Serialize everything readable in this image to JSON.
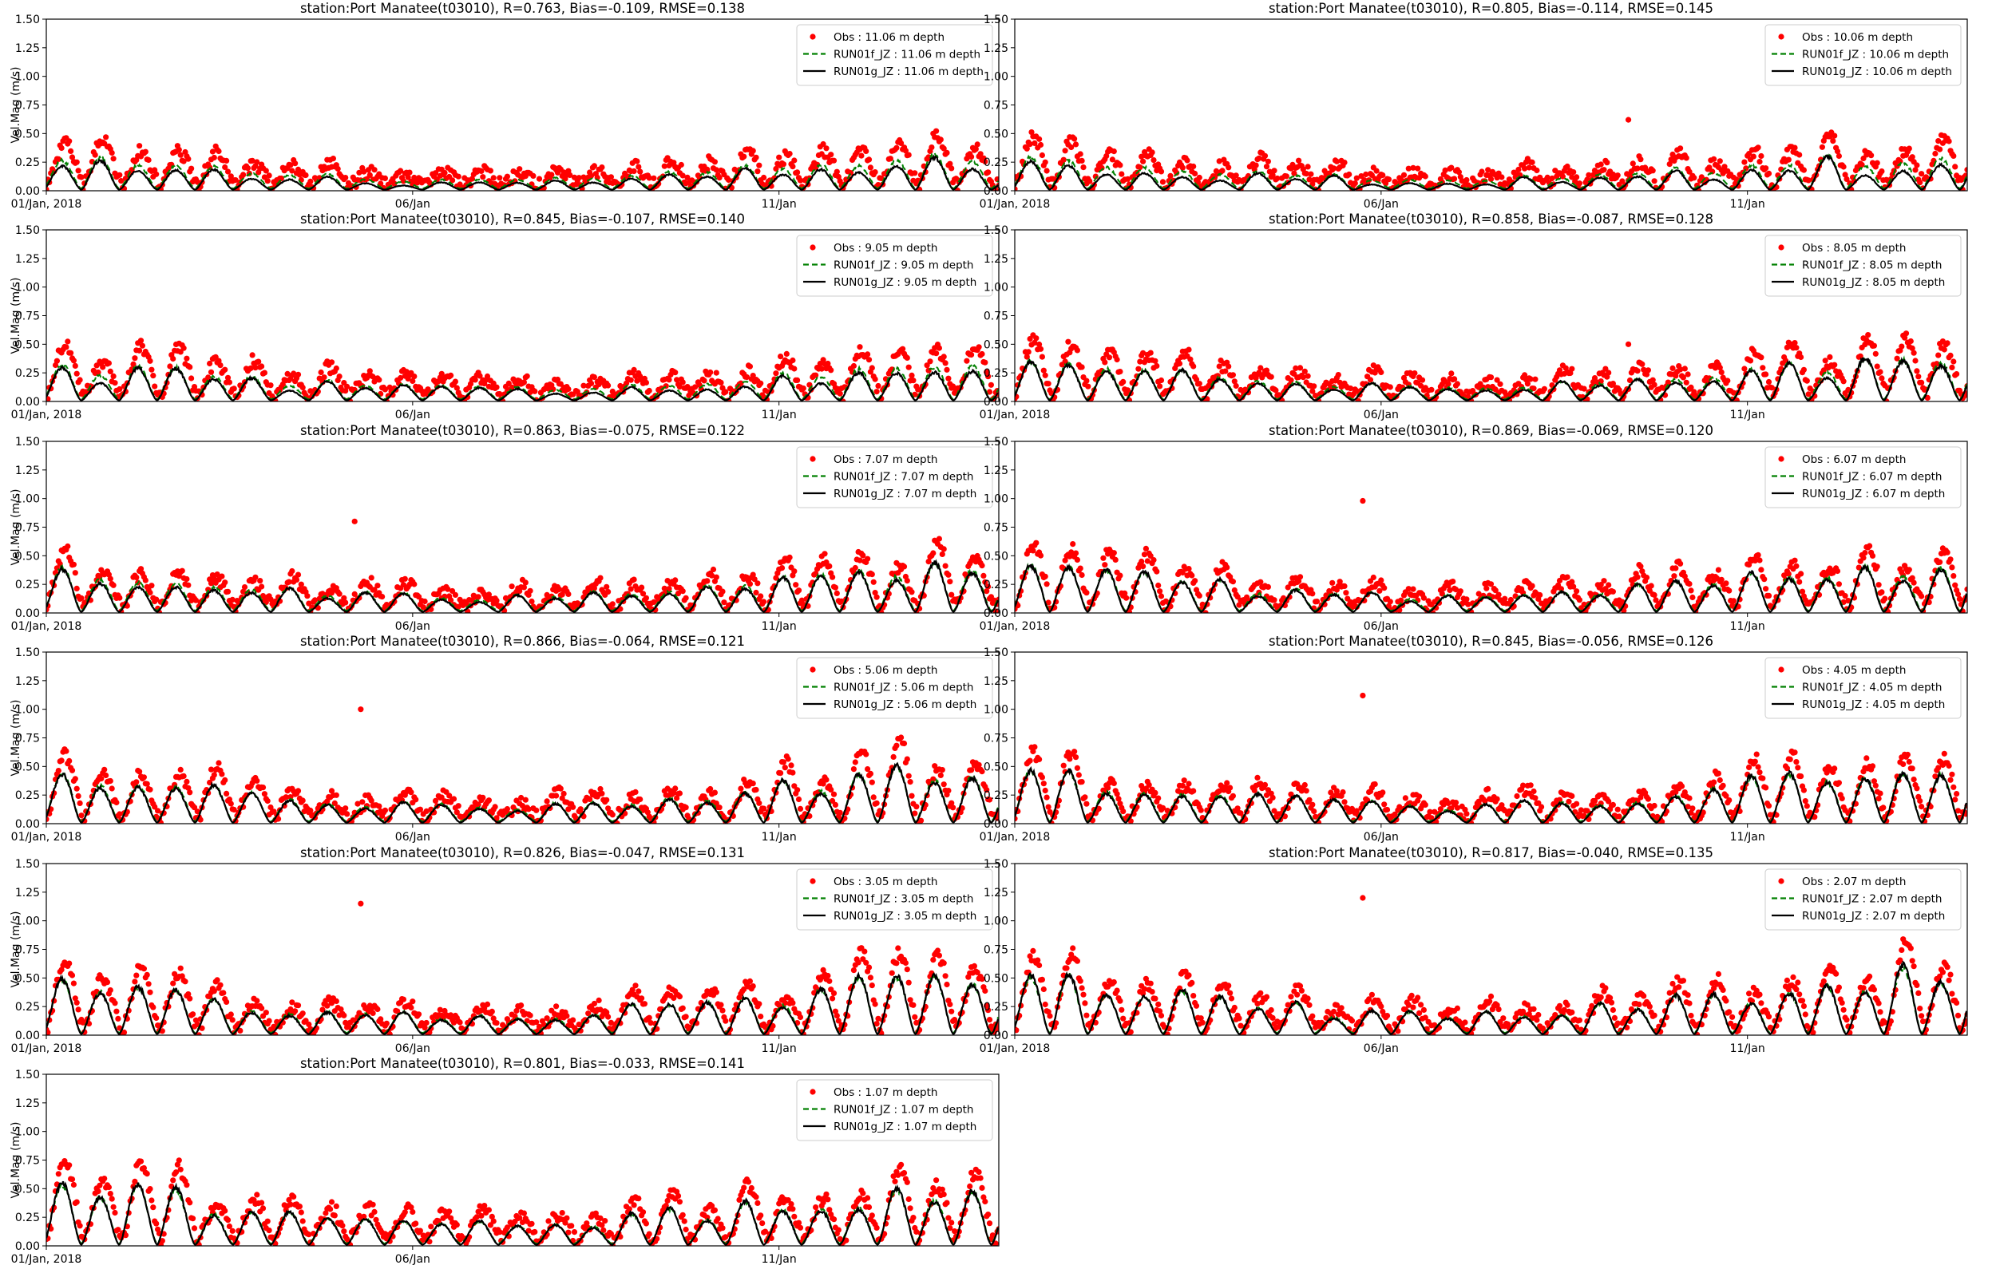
{
  "chart_data": [
    {
      "type": "line",
      "title": "station:Port Manatee(t03010), R=0.763, Bias=-0.109, RMSE=0.138",
      "ylabel": "Vel.Mag (m/s)",
      "ylim": [
        0,
        1.5
      ],
      "yticks": [
        "0.00",
        "0.25",
        "0.50",
        "0.75",
        "1.00",
        "1.25",
        "1.50"
      ],
      "xlim": [
        "2018-01-01",
        "2018-01-14"
      ],
      "xticks": [
        {
          "date": "2018-01-01",
          "label": "01/Jan, 2018"
        },
        {
          "date": "2018-01-06",
          "label": "06/Jan"
        },
        {
          "date": "2018-01-11",
          "label": "11/Jan"
        }
      ],
      "series": [
        {
          "name": "Obs : 11.06 m depth",
          "kind": "scatter",
          "color": "#ff0000",
          "amp_mean": 0.36,
          "amp_var": 0.12,
          "base": 0.05
        },
        {
          "name": "RUN01f_JZ : 11.06 m depth",
          "kind": "dashed",
          "color": "#008000",
          "amp_mean": 0.25,
          "amp_var": 0.07,
          "base": 0.02
        },
        {
          "name": "RUN01g_JZ : 11.06 m depth",
          "kind": "solid",
          "color": "#000000",
          "amp_mean": 0.2,
          "amp_var": 0.1,
          "base": 0.01
        }
      ],
      "legend": "top-right"
    },
    {
      "type": "line",
      "title": "station:Port Manatee(t03010), R=0.805, Bias=-0.114, RMSE=0.145",
      "ylabel": "",
      "ylim": [
        0,
        1.5
      ],
      "yticks": [
        "0.00",
        "0.25",
        "0.50",
        "0.75",
        "1.00",
        "1.25",
        "1.50"
      ],
      "xlim": [
        "2018-01-01",
        "2018-01-14"
      ],
      "xticks": [
        {
          "date": "2018-01-01",
          "label": "01/Jan, 2018"
        },
        {
          "date": "2018-01-06",
          "label": "06/Jan"
        },
        {
          "date": "2018-01-11",
          "label": "11/Jan"
        }
      ],
      "series": [
        {
          "name": "Obs : 10.06 m depth",
          "kind": "scatter",
          "color": "#ff0000",
          "amp_mean": 0.42,
          "amp_var": 0.13,
          "base": 0.05
        },
        {
          "name": "RUN01f_JZ : 10.06 m depth",
          "kind": "dashed",
          "color": "#008000",
          "amp_mean": 0.28,
          "amp_var": 0.07,
          "base": 0.02
        },
        {
          "name": "RUN01g_JZ : 10.06 m depth",
          "kind": "solid",
          "color": "#000000",
          "amp_mean": 0.24,
          "amp_var": 0.11,
          "base": 0.01
        }
      ],
      "outliers": [
        {
          "x": "2018-01-09 09:00",
          "y": 0.62
        }
      ],
      "legend": "top-right"
    },
    {
      "type": "line",
      "title": "station:Port Manatee(t03010), R=0.845, Bias=-0.107, RMSE=0.140",
      "ylabel": "Vel.Mag (m/s)",
      "ylim": [
        0,
        1.5
      ],
      "yticks": [
        "0.00",
        "0.25",
        "0.50",
        "0.75",
        "1.00",
        "1.25",
        "1.50"
      ],
      "xlim": [
        "2018-01-01",
        "2018-01-14"
      ],
      "xticks": [
        {
          "date": "2018-01-01",
          "label": "01/Jan, 2018"
        },
        {
          "date": "2018-01-06",
          "label": "06/Jan"
        },
        {
          "date": "2018-01-11",
          "label": "11/Jan"
        }
      ],
      "series": [
        {
          "name": "Obs : 9.05 m depth",
          "kind": "scatter",
          "color": "#ff0000",
          "amp_mean": 0.46,
          "amp_var": 0.15,
          "base": 0.05
        },
        {
          "name": "RUN01f_JZ : 9.05 m depth",
          "kind": "dashed",
          "color": "#008000",
          "amp_mean": 0.31,
          "amp_var": 0.08,
          "base": 0.02
        },
        {
          "name": "RUN01g_JZ : 9.05 m depth",
          "kind": "solid",
          "color": "#000000",
          "amp_mean": 0.28,
          "amp_var": 0.12,
          "base": 0.01
        }
      ],
      "legend": "top-right"
    },
    {
      "type": "line",
      "title": "station:Port Manatee(t03010), R=0.858, Bias=-0.087, RMSE=0.128",
      "ylabel": "",
      "ylim": [
        0,
        1.5
      ],
      "yticks": [
        "0.00",
        "0.25",
        "0.50",
        "0.75",
        "1.00",
        "1.25",
        "1.50"
      ],
      "xlim": [
        "2018-01-01",
        "2018-01-14"
      ],
      "xticks": [
        {
          "date": "2018-01-01",
          "label": "01/Jan, 2018"
        },
        {
          "date": "2018-01-06",
          "label": "06/Jan"
        },
        {
          "date": "2018-01-11",
          "label": "11/Jan"
        }
      ],
      "series": [
        {
          "name": "Obs : 8.05 m depth",
          "kind": "scatter",
          "color": "#ff0000",
          "amp_mean": 0.48,
          "amp_var": 0.16,
          "base": 0.05
        },
        {
          "name": "RUN01f_JZ : 8.05 m depth",
          "kind": "dashed",
          "color": "#008000",
          "amp_mean": 0.34,
          "amp_var": 0.08,
          "base": 0.02
        },
        {
          "name": "RUN01g_JZ : 8.05 m depth",
          "kind": "solid",
          "color": "#000000",
          "amp_mean": 0.33,
          "amp_var": 0.12,
          "base": 0.01
        }
      ],
      "outliers": [
        {
          "x": "2018-01-09 09:00",
          "y": 0.5
        }
      ],
      "legend": "top-right"
    },
    {
      "type": "line",
      "title": "station:Port Manatee(t03010), R=0.863, Bias=-0.075, RMSE=0.122",
      "ylabel": "Vel.Mag (m/s)",
      "ylim": [
        0,
        1.5
      ],
      "yticks": [
        "0.00",
        "0.25",
        "0.50",
        "0.75",
        "1.00",
        "1.25",
        "1.50"
      ],
      "xlim": [
        "2018-01-01",
        "2018-01-14"
      ],
      "xticks": [
        {
          "date": "2018-01-01",
          "label": "01/Jan, 2018"
        },
        {
          "date": "2018-01-06",
          "label": "06/Jan"
        },
        {
          "date": "2018-01-11",
          "label": "11/Jan"
        }
      ],
      "series": [
        {
          "name": "Obs : 7.07 m depth",
          "kind": "scatter",
          "color": "#ff0000",
          "amp_mean": 0.5,
          "amp_var": 0.17,
          "base": 0.05
        },
        {
          "name": "RUN01f_JZ : 7.07 m depth",
          "kind": "dashed",
          "color": "#008000",
          "amp_mean": 0.38,
          "amp_var": 0.09,
          "base": 0.02
        },
        {
          "name": "RUN01g_JZ : 7.07 m depth",
          "kind": "solid",
          "color": "#000000",
          "amp_mean": 0.37,
          "amp_var": 0.12,
          "base": 0.01
        }
      ],
      "outliers": [
        {
          "x": "2018-01-05 05:00",
          "y": 0.8
        }
      ],
      "legend": "top-right"
    },
    {
      "type": "line",
      "title": "station:Port Manatee(t03010), R=0.869, Bias=-0.069, RMSE=0.120",
      "ylabel": "",
      "ylim": [
        0,
        1.5
      ],
      "yticks": [
        "0.00",
        "0.25",
        "0.50",
        "0.75",
        "1.00",
        "1.25",
        "1.50"
      ],
      "xlim": [
        "2018-01-01",
        "2018-01-14"
      ],
      "xticks": [
        {
          "date": "2018-01-01",
          "label": "01/Jan, 2018"
        },
        {
          "date": "2018-01-06",
          "label": "06/Jan"
        },
        {
          "date": "2018-01-11",
          "label": "11/Jan"
        }
      ],
      "series": [
        {
          "name": "Obs : 6.07 m depth",
          "kind": "scatter",
          "color": "#ff0000",
          "amp_mean": 0.52,
          "amp_var": 0.18,
          "base": 0.05
        },
        {
          "name": "RUN01f_JZ : 6.07 m depth",
          "kind": "dashed",
          "color": "#008000",
          "amp_mean": 0.4,
          "amp_var": 0.1,
          "base": 0.02
        },
        {
          "name": "RUN01g_JZ : 6.07 m depth",
          "kind": "solid",
          "color": "#000000",
          "amp_mean": 0.4,
          "amp_var": 0.13,
          "base": 0.01
        }
      ],
      "outliers": [
        {
          "x": "2018-01-05 18:00",
          "y": 0.98
        }
      ],
      "legend": "top-right"
    },
    {
      "type": "line",
      "title": "station:Port Manatee(t03010), R=0.866, Bias=-0.064, RMSE=0.121",
      "ylabel": "Vel.Mag (m/s)",
      "ylim": [
        0,
        1.5
      ],
      "yticks": [
        "0.00",
        "0.25",
        "0.50",
        "0.75",
        "1.00",
        "1.25",
        "1.50"
      ],
      "xlim": [
        "2018-01-01",
        "2018-01-14"
      ],
      "xticks": [
        {
          "date": "2018-01-01",
          "label": "01/Jan, 2018"
        },
        {
          "date": "2018-01-06",
          "label": "06/Jan"
        },
        {
          "date": "2018-01-11",
          "label": "11/Jan"
        }
      ],
      "series": [
        {
          "name": "Obs : 5.06 m depth",
          "kind": "scatter",
          "color": "#ff0000",
          "amp_mean": 0.54,
          "amp_var": 0.2,
          "base": 0.05
        },
        {
          "name": "RUN01f_JZ : 5.06 m depth",
          "kind": "dashed",
          "color": "#008000",
          "amp_mean": 0.42,
          "amp_var": 0.11,
          "base": 0.02
        },
        {
          "name": "RUN01g_JZ : 5.06 m depth",
          "kind": "solid",
          "color": "#000000",
          "amp_mean": 0.42,
          "amp_var": 0.13,
          "base": 0.01
        }
      ],
      "outliers": [
        {
          "x": "2018-01-05 07:00",
          "y": 1.0
        }
      ],
      "legend": "top-right"
    },
    {
      "type": "line",
      "title": "station:Port Manatee(t03010), R=0.845, Bias=-0.056, RMSE=0.126",
      "ylabel": "",
      "ylim": [
        0,
        1.5
      ],
      "yticks": [
        "0.00",
        "0.25",
        "0.50",
        "0.75",
        "1.00",
        "1.25",
        "1.50"
      ],
      "xlim": [
        "2018-01-01",
        "2018-01-14"
      ],
      "xticks": [
        {
          "date": "2018-01-01",
          "label": "01/Jan, 2018"
        },
        {
          "date": "2018-01-06",
          "label": "06/Jan"
        },
        {
          "date": "2018-01-11",
          "label": "11/Jan"
        }
      ],
      "series": [
        {
          "name": "Obs : 4.05 m depth",
          "kind": "scatter",
          "color": "#ff0000",
          "amp_mean": 0.56,
          "amp_var": 0.2,
          "base": 0.05
        },
        {
          "name": "RUN01f_JZ : 4.05 m depth",
          "kind": "dashed",
          "color": "#008000",
          "amp_mean": 0.44,
          "amp_var": 0.12,
          "base": 0.02
        },
        {
          "name": "RUN01g_JZ : 4.05 m depth",
          "kind": "solid",
          "color": "#000000",
          "amp_mean": 0.45,
          "amp_var": 0.14,
          "base": 0.01
        }
      ],
      "outliers": [
        {
          "x": "2018-01-05 18:00",
          "y": 1.12
        }
      ],
      "legend": "top-right"
    },
    {
      "type": "line",
      "title": "station:Port Manatee(t03010), R=0.826, Bias=-0.047, RMSE=0.131",
      "ylabel": "Vel.Mag (m/s)",
      "ylim": [
        0,
        1.5
      ],
      "yticks": [
        "0.00",
        "0.25",
        "0.50",
        "0.75",
        "1.00",
        "1.25",
        "1.50"
      ],
      "xlim": [
        "2018-01-01",
        "2018-01-14"
      ],
      "xticks": [
        {
          "date": "2018-01-01",
          "label": "01/Jan, 2018"
        },
        {
          "date": "2018-01-06",
          "label": "06/Jan"
        },
        {
          "date": "2018-01-11",
          "label": "11/Jan"
        }
      ],
      "series": [
        {
          "name": "Obs : 3.05 m depth",
          "kind": "scatter",
          "color": "#ff0000",
          "amp_mean": 0.6,
          "amp_var": 0.22,
          "base": 0.05
        },
        {
          "name": "RUN01f_JZ : 3.05 m depth",
          "kind": "dashed",
          "color": "#008000",
          "amp_mean": 0.46,
          "amp_var": 0.13,
          "base": 0.02
        },
        {
          "name": "RUN01g_JZ : 3.05 m depth",
          "kind": "solid",
          "color": "#000000",
          "amp_mean": 0.47,
          "amp_var": 0.15,
          "base": 0.01
        }
      ],
      "outliers": [
        {
          "x": "2018-01-05 07:00",
          "y": 1.15
        }
      ],
      "legend": "top-right"
    },
    {
      "type": "line",
      "title": "station:Port Manatee(t03010), R=0.817, Bias=-0.040, RMSE=0.135",
      "ylabel": "",
      "ylim": [
        0,
        1.5
      ],
      "yticks": [
        "0.00",
        "0.25",
        "0.50",
        "0.75",
        "1.00",
        "1.25",
        "1.50"
      ],
      "xlim": [
        "2018-01-01",
        "2018-01-14"
      ],
      "xticks": [
        {
          "date": "2018-01-01",
          "label": "01/Jan, 2018"
        },
        {
          "date": "2018-01-06",
          "label": "06/Jan"
        },
        {
          "date": "2018-01-11",
          "label": "11/Jan"
        }
      ],
      "series": [
        {
          "name": "Obs : 2.07 m depth",
          "kind": "scatter",
          "color": "#ff0000",
          "amp_mean": 0.62,
          "amp_var": 0.22,
          "base": 0.05
        },
        {
          "name": "RUN01f_JZ : 2.07 m depth",
          "kind": "dashed",
          "color": "#008000",
          "amp_mean": 0.48,
          "amp_var": 0.14,
          "base": 0.02
        },
        {
          "name": "RUN01g_JZ : 2.07 m depth",
          "kind": "solid",
          "color": "#000000",
          "amp_mean": 0.5,
          "amp_var": 0.16,
          "base": 0.01
        }
      ],
      "outliers": [
        {
          "x": "2018-01-05 18:00",
          "y": 1.2
        }
      ],
      "legend": "top-right"
    },
    {
      "type": "line",
      "title": "station:Port Manatee(t03010), R=0.801, Bias=-0.033, RMSE=0.141",
      "ylabel": "Vel.Mag (m/s)",
      "ylim": [
        0,
        1.5
      ],
      "yticks": [
        "0.00",
        "0.25",
        "0.50",
        "0.75",
        "1.00",
        "1.25",
        "1.50"
      ],
      "xlim": [
        "2018-01-01",
        "2018-01-14"
      ],
      "xticks": [
        {
          "date": "2018-01-01",
          "label": "01/Jan, 2018"
        },
        {
          "date": "2018-01-06",
          "label": "06/Jan"
        },
        {
          "date": "2018-01-11",
          "label": "11/Jan"
        }
      ],
      "series": [
        {
          "name": "Obs : 1.07 m depth",
          "kind": "scatter",
          "color": "#ff0000",
          "amp_mean": 0.66,
          "amp_var": 0.24,
          "base": 0.05
        },
        {
          "name": "RUN01f_JZ : 1.07 m depth",
          "kind": "dashed",
          "color": "#008000",
          "amp_mean": 0.5,
          "amp_var": 0.15,
          "base": 0.02
        },
        {
          "name": "RUN01g_JZ : 1.07 m depth",
          "kind": "solid",
          "color": "#000000",
          "amp_mean": 0.52,
          "amp_var": 0.18,
          "base": 0.01
        }
      ],
      "legend": "top-right"
    }
  ]
}
